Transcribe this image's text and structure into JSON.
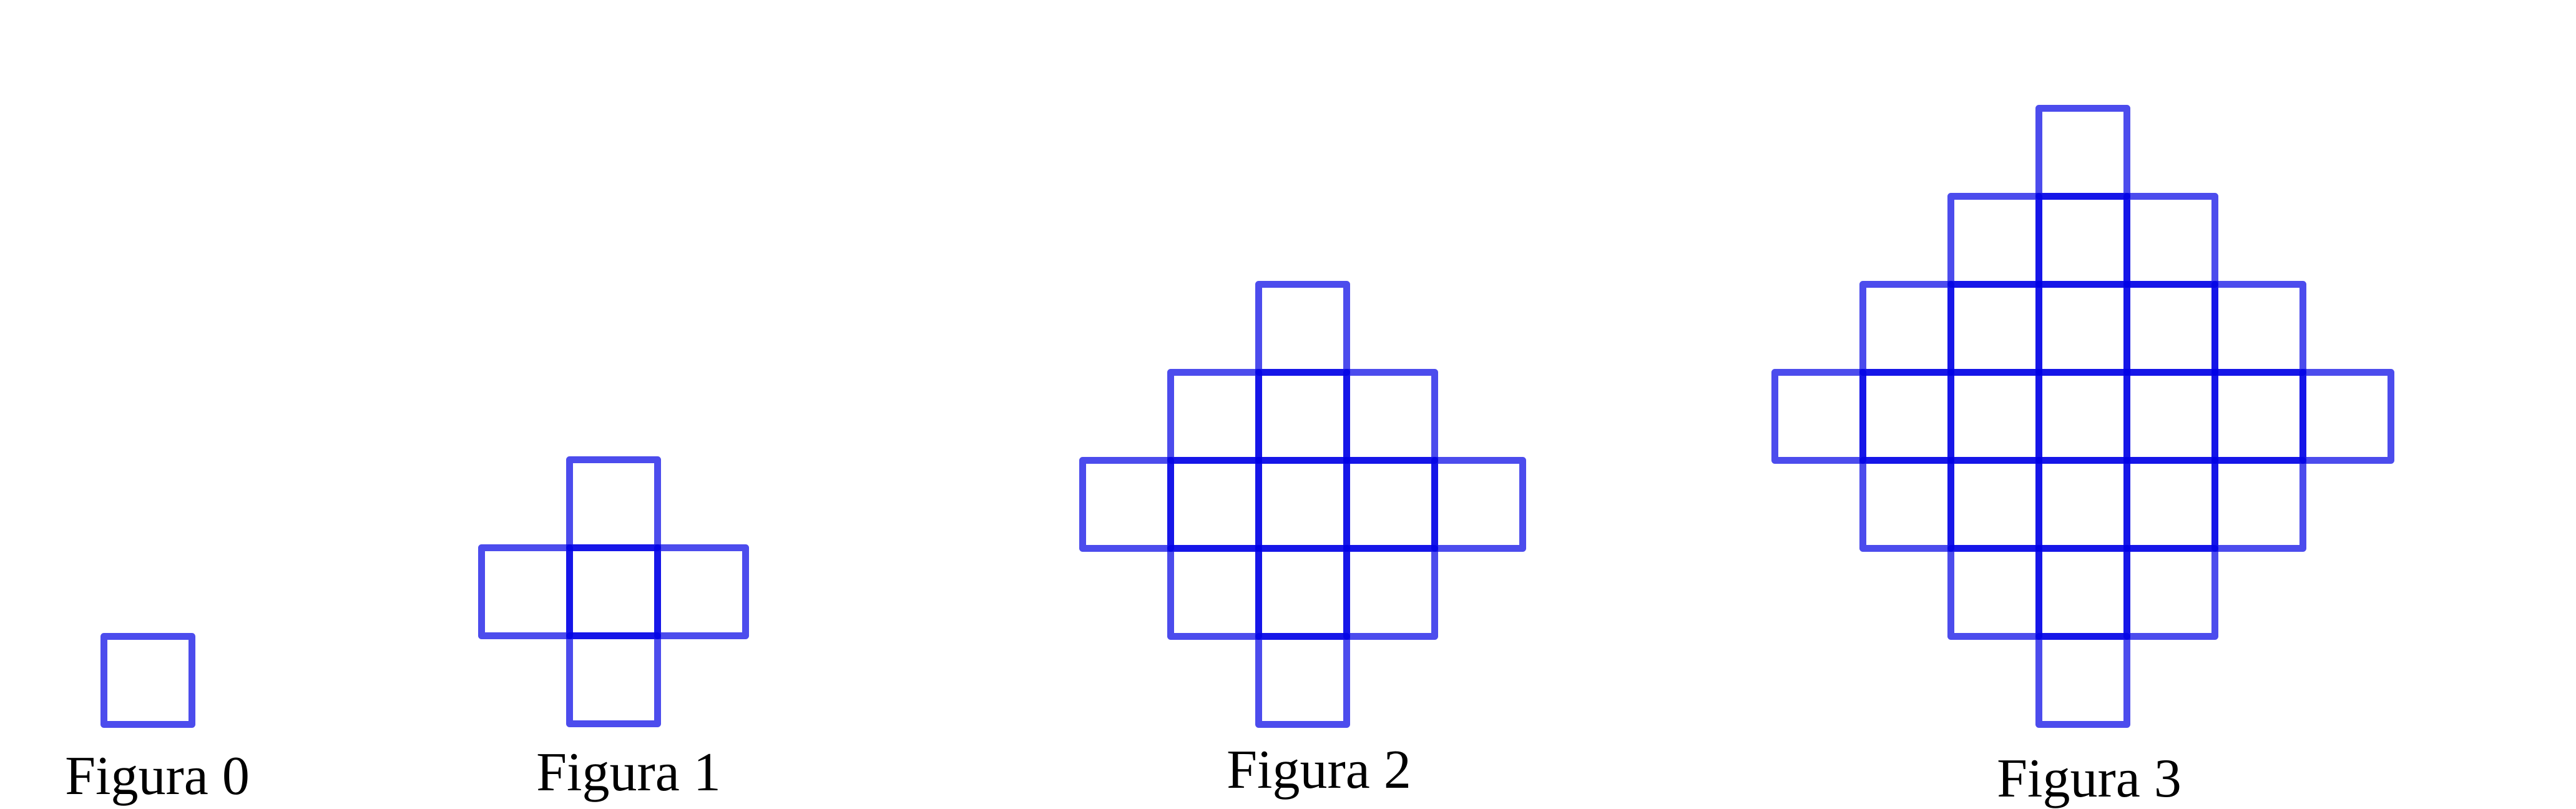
{
  "stroke_color": "#0000e6",
  "figures": [
    {
      "label": "Figura 0",
      "n": 0
    },
    {
      "label": "Figura 1",
      "n": 1
    },
    {
      "label": "Figura 2",
      "n": 2
    },
    {
      "label": "Figura 3",
      "n": 3
    }
  ]
}
